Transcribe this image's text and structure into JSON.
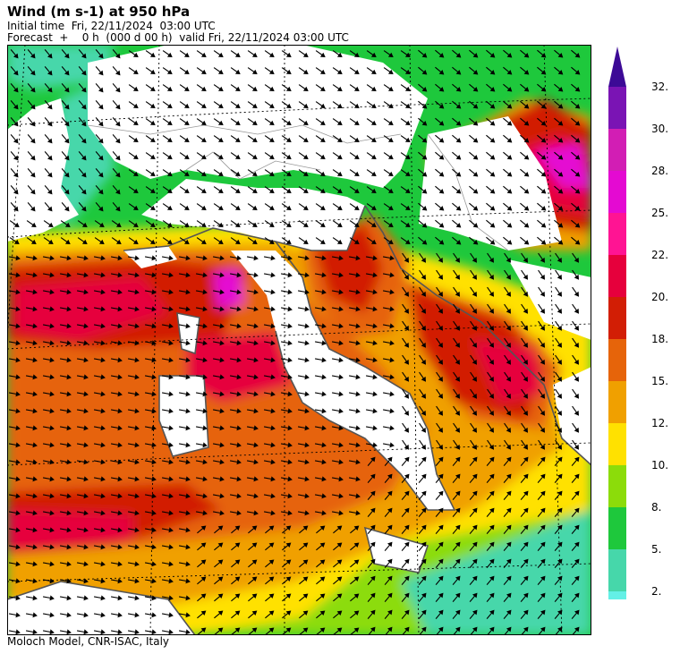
{
  "header": {
    "title": "Wind (m s-1) at 950 hPa",
    "initial_time": "Initial time  Fri, 22/11/2024  03:00 UTC",
    "forecast": "Forecast  +    0 h  (000 d 00 h)  valid Fri, 22/11/2024 03:00 UTC"
  },
  "footer": {
    "credit": "Moloch Model, CNR-ISAC, Italy"
  },
  "colorbar": {
    "labels": [
      "32.",
      "30.",
      "28.",
      "25.",
      "22.",
      "20.",
      "18.",
      "15.",
      "12.",
      "10.",
      "8.",
      "5.",
      "2."
    ],
    "colors": [
      "#7a14b4",
      "#d21eb4",
      "#e40ad2",
      "#ff1493",
      "#e6003c",
      "#d21e05",
      "#e6640a",
      "#f0a000",
      "#ffe100",
      "#8cdc0a",
      "#1ec83c",
      "#46d7aa",
      "#64f0e6"
    ],
    "arrow_color": "#3c0a96"
  },
  "map": {
    "land_color": "#ffffff",
    "coast_color": "#555555",
    "grid_style": "dotted",
    "arrow_glyph": "wind-arrow"
  }
}
